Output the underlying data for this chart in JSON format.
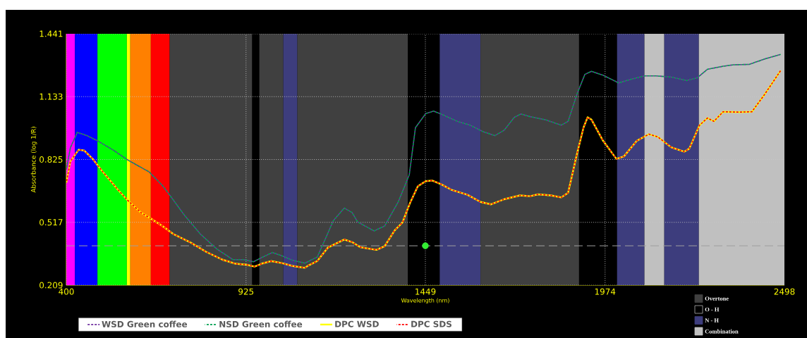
{
  "chart_data": {
    "type": "line",
    "xlabel": "Wavelength (nm)",
    "ylabel": "Absorbance  (log 1/R)",
    "xlim": [
      400,
      2498
    ],
    "ylim": [
      0.209,
      1.441
    ],
    "xticks": [
      400,
      925,
      1449,
      1974,
      2498
    ],
    "yticks": [
      0.209,
      0.517,
      0.825,
      1.133,
      1.441
    ],
    "grid": true,
    "legend": "bottom",
    "bands": [
      {
        "axis": "x",
        "from": 400,
        "to": 425,
        "color": "#ff00ff"
      },
      {
        "axis": "x",
        "from": 425,
        "to": 491,
        "color": "#0000ff"
      },
      {
        "axis": "x",
        "from": 491,
        "to": 577,
        "color": "#00ff00"
      },
      {
        "axis": "x",
        "from": 577,
        "to": 587,
        "color": "#ffff00"
      },
      {
        "axis": "x",
        "from": 587,
        "to": 647,
        "color": "#ff8000"
      },
      {
        "axis": "x",
        "from": 647,
        "to": 702,
        "color": "#ff0000"
      },
      {
        "axis": "x",
        "from": 702,
        "to": 943,
        "color": "#404040",
        "label": "Overtone"
      },
      {
        "axis": "x",
        "from": 943,
        "to": 964,
        "color": "#000000",
        "label": "O - H"
      },
      {
        "axis": "x",
        "from": 964,
        "to": 1034,
        "color": "#404040"
      },
      {
        "axis": "x",
        "from": 1034,
        "to": 1075,
        "color": "#3d3d7d",
        "label": "N - H"
      },
      {
        "axis": "x",
        "from": 1075,
        "to": 1398,
        "color": "#404040"
      },
      {
        "axis": "x",
        "from": 1398,
        "to": 1491,
        "color": "#000000"
      },
      {
        "axis": "x",
        "from": 1491,
        "to": 1610,
        "color": "#3d3d7d"
      },
      {
        "axis": "x",
        "from": 1610,
        "to": 1898,
        "color": "#404040"
      },
      {
        "axis": "x",
        "from": 1898,
        "to": 2009,
        "color": "#000000"
      },
      {
        "axis": "x",
        "from": 2009,
        "to": 2089,
        "color": "#3d3d7d"
      },
      {
        "axis": "x",
        "from": 2089,
        "to": 2147,
        "color": "#c0c0c0",
        "label": "Combination"
      },
      {
        "axis": "x",
        "from": 2147,
        "to": 2248,
        "color": "#3d3d7d"
      },
      {
        "axis": "x",
        "from": 2248,
        "to": 2498,
        "color": "#c0c0c0"
      }
    ],
    "ref_lines": [
      {
        "axis": "y",
        "value": 0.402,
        "color": "#a0a0a0",
        "line_style": "dashed"
      }
    ],
    "series": [
      {
        "name": "WSD Green coffee",
        "color": "#7030a0",
        "line_style": "dashed",
        "x": [
          400,
          412,
          432,
          460,
          492,
          539,
          579,
          642,
          681,
          705,
          745,
          792,
          840,
          887,
          919,
          947,
          974,
          1002,
          1030,
          1061,
          1097,
          1133,
          1156,
          1180,
          1212,
          1235,
          1251,
          1299,
          1330,
          1370,
          1402,
          1420,
          1450,
          1473,
          1496,
          1542,
          1580,
          1618,
          1652,
          1679,
          1709,
          1728,
          1755,
          1801,
          1846,
          1866,
          1892,
          1915,
          1934,
          1968,
          2014,
          2045,
          2090,
          2121,
          2167,
          2212,
          2243,
          2273,
          2319,
          2349,
          2395,
          2441,
          2487
        ],
        "values": [
          0.777,
          0.883,
          0.958,
          0.942,
          0.916,
          0.869,
          0.823,
          0.764,
          0.697,
          0.644,
          0.552,
          0.459,
          0.386,
          0.334,
          0.334,
          0.324,
          0.347,
          0.369,
          0.353,
          0.331,
          0.317,
          0.347,
          0.433,
          0.525,
          0.587,
          0.565,
          0.519,
          0.475,
          0.499,
          0.618,
          0.75,
          0.981,
          1.05,
          1.062,
          1.047,
          1.012,
          0.993,
          0.961,
          0.942,
          0.968,
          1.032,
          1.048,
          1.035,
          1.019,
          0.993,
          1.012,
          1.146,
          1.242,
          1.257,
          1.238,
          1.2,
          1.216,
          1.235,
          1.235,
          1.229,
          1.212,
          1.225,
          1.267,
          1.282,
          1.289,
          1.291,
          1.318,
          1.34
        ]
      },
      {
        "name": "NSD Green coffee",
        "color": "#00a050",
        "line_style": "dashed",
        "x": [
          400,
          412,
          432,
          460,
          492,
          539,
          579,
          642,
          681,
          705,
          745,
          792,
          840,
          887,
          919,
          947,
          974,
          1002,
          1030,
          1061,
          1097,
          1133,
          1156,
          1180,
          1212,
          1235,
          1251,
          1299,
          1330,
          1370,
          1402,
          1420,
          1450,
          1473,
          1496,
          1542,
          1580,
          1618,
          1652,
          1679,
          1709,
          1728,
          1755,
          1801,
          1846,
          1866,
          1892,
          1915,
          1934,
          1968,
          2014,
          2045,
          2090,
          2121,
          2167,
          2212,
          2243,
          2273,
          2319,
          2349,
          2395,
          2441,
          2487
        ],
        "values": [
          0.777,
          0.883,
          0.958,
          0.942,
          0.916,
          0.869,
          0.823,
          0.764,
          0.697,
          0.644,
          0.552,
          0.459,
          0.386,
          0.334,
          0.334,
          0.324,
          0.347,
          0.369,
          0.353,
          0.331,
          0.317,
          0.347,
          0.433,
          0.525,
          0.587,
          0.565,
          0.519,
          0.475,
          0.499,
          0.618,
          0.75,
          0.981,
          1.05,
          1.062,
          1.047,
          1.012,
          0.993,
          0.961,
          0.942,
          0.968,
          1.032,
          1.048,
          1.035,
          1.019,
          0.993,
          1.012,
          1.146,
          1.242,
          1.257,
          1.238,
          1.2,
          1.216,
          1.235,
          1.235,
          1.229,
          1.212,
          1.225,
          1.267,
          1.282,
          1.289,
          1.291,
          1.318,
          1.34
        ]
      },
      {
        "name": "DPC WSD",
        "color": "#ffff00",
        "line_style": "solid",
        "x": [
          400,
          412,
          436,
          452,
          476,
          507,
          547,
          579,
          618,
          650,
          681,
          713,
          761,
          808,
          856,
          895,
          927,
          950,
          974,
          998,
          1030,
          1061,
          1097,
          1109,
          1133,
          1164,
          1212,
          1235,
          1259,
          1306,
          1330,
          1359,
          1382,
          1404,
          1427,
          1450,
          1469,
          1496,
          1527,
          1572,
          1610,
          1641,
          1679,
          1725,
          1755,
          1778,
          1816,
          1846,
          1866,
          1892,
          1911,
          1923,
          1934,
          1968,
          2007,
          2029,
          2067,
          2102,
          2128,
          2167,
          2205,
          2220,
          2250,
          2273,
          2292,
          2319,
          2365,
          2403,
          2441,
          2487
        ],
        "values": [
          0.711,
          0.816,
          0.873,
          0.869,
          0.83,
          0.764,
          0.684,
          0.625,
          0.565,
          0.532,
          0.499,
          0.459,
          0.42,
          0.373,
          0.334,
          0.314,
          0.309,
          0.3,
          0.316,
          0.327,
          0.317,
          0.303,
          0.294,
          0.307,
          0.327,
          0.393,
          0.433,
          0.42,
          0.395,
          0.382,
          0.4,
          0.477,
          0.516,
          0.611,
          0.694,
          0.719,
          0.722,
          0.703,
          0.675,
          0.652,
          0.617,
          0.605,
          0.63,
          0.649,
          0.645,
          0.654,
          0.649,
          0.639,
          0.662,
          0.853,
          0.981,
          1.032,
          1.021,
          0.917,
          0.828,
          0.84,
          0.917,
          0.949,
          0.936,
          0.885,
          0.863,
          0.878,
          0.993,
          1.028,
          1.012,
          1.059,
          1.057,
          1.059,
          1.146,
          1.261
        ]
      },
      {
        "name": "DPC SDS",
        "color": "#ff0000",
        "line_style": "dashed",
        "x": [
          400,
          412,
          436,
          452,
          476,
          507,
          547,
          579,
          618,
          650,
          681,
          713,
          761,
          808,
          856,
          895,
          927,
          950,
          974,
          998,
          1030,
          1061,
          1097,
          1109,
          1133,
          1164,
          1212,
          1235,
          1259,
          1306,
          1330,
          1359,
          1382,
          1404,
          1427,
          1450,
          1469,
          1496,
          1527,
          1572,
          1610,
          1641,
          1679,
          1725,
          1755,
          1778,
          1816,
          1846,
          1866,
          1892,
          1911,
          1923,
          1934,
          1968,
          2007,
          2029,
          2067,
          2102,
          2128,
          2167,
          2205,
          2220,
          2250,
          2273,
          2292,
          2319,
          2365,
          2403,
          2441,
          2487
        ],
        "values": [
          0.711,
          0.816,
          0.873,
          0.869,
          0.83,
          0.764,
          0.684,
          0.625,
          0.565,
          0.532,
          0.499,
          0.459,
          0.42,
          0.373,
          0.334,
          0.314,
          0.309,
          0.3,
          0.316,
          0.327,
          0.317,
          0.303,
          0.294,
          0.307,
          0.327,
          0.393,
          0.433,
          0.42,
          0.395,
          0.382,
          0.4,
          0.477,
          0.516,
          0.611,
          0.694,
          0.719,
          0.722,
          0.703,
          0.675,
          0.652,
          0.617,
          0.605,
          0.63,
          0.649,
          0.645,
          0.654,
          0.649,
          0.639,
          0.662,
          0.853,
          0.981,
          1.032,
          1.021,
          0.917,
          0.828,
          0.84,
          0.917,
          0.949,
          0.936,
          0.885,
          0.863,
          0.878,
          0.993,
          1.028,
          1.012,
          1.059,
          1.057,
          1.059,
          1.146,
          1.261
        ]
      },
      {
        "type": "scatter",
        "color": "#33ee33",
        "x": [
          1449
        ],
        "values": [
          0.402
        ]
      }
    ]
  }
}
